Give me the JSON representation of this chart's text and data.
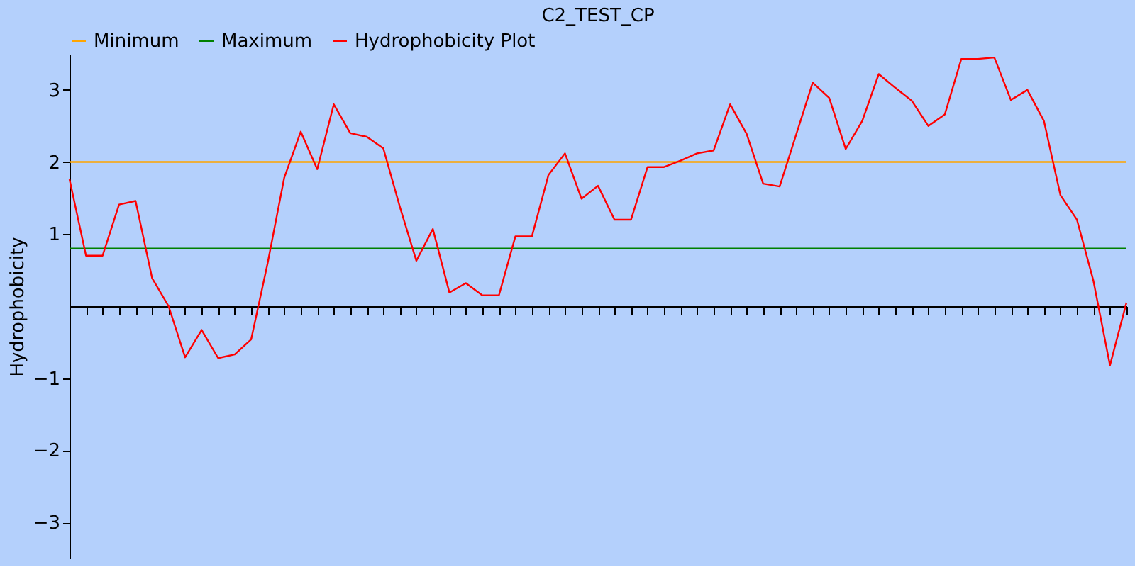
{
  "chart_data": {
    "type": "line",
    "title": "C2_TEST_CP",
    "ylabel": "Hydrophobicity",
    "categories": [
      null,
      null,
      null,
      null,
      null,
      null,
      null,
      null,
      null,
      null,
      null,
      null,
      null,
      null,
      null,
      null,
      null,
      null,
      null,
      null,
      null,
      null,
      null,
      null,
      null,
      null,
      null,
      null,
      null,
      null,
      null,
      null,
      null,
      null,
      null,
      null,
      null,
      null,
      null,
      null,
      null,
      null,
      null,
      null,
      null,
      null,
      null,
      null,
      null,
      null,
      null,
      null,
      null,
      null,
      null,
      null,
      null,
      null,
      null,
      null,
      null,
      null,
      null,
      null,
      null
    ],
    "series": [
      {
        "name": "Minimum",
        "color": "#ffa500",
        "values": [
          2,
          2,
          2,
          2,
          2,
          2,
          2,
          2,
          2,
          2,
          2,
          2,
          2,
          2,
          2,
          2,
          2,
          2,
          2,
          2,
          2,
          2,
          2,
          2,
          2,
          2,
          2,
          2,
          2,
          2,
          2,
          2,
          2,
          2,
          2,
          2,
          2,
          2,
          2,
          2,
          2,
          2,
          2,
          2,
          2,
          2,
          2,
          2,
          2,
          2,
          2,
          2,
          2,
          2,
          2,
          2,
          2,
          2,
          2,
          2,
          2,
          2,
          2,
          2,
          2
        ]
      },
      {
        "name": "Maximum",
        "color": "#008000",
        "values": [
          0.8,
          0.8,
          0.8,
          0.8,
          0.8,
          0.8,
          0.8,
          0.8,
          0.8,
          0.8,
          0.8,
          0.8,
          0.8,
          0.8,
          0.8,
          0.8,
          0.8,
          0.8,
          0.8,
          0.8,
          0.8,
          0.8,
          0.8,
          0.8,
          0.8,
          0.8,
          0.8,
          0.8,
          0.8,
          0.8,
          0.8,
          0.8,
          0.8,
          0.8,
          0.8,
          0.8,
          0.8,
          0.8,
          0.8,
          0.8,
          0.8,
          0.8,
          0.8,
          0.8,
          0.8,
          0.8,
          0.8,
          0.8,
          0.8,
          0.8,
          0.8,
          0.8,
          0.8,
          0.8,
          0.8,
          0.8,
          0.8,
          0.8,
          0.8,
          0.8,
          0.8,
          0.8,
          0.8,
          0.8,
          0.8
        ]
      },
      {
        "name": "Hydrophobicity Plot",
        "color": "#ff0000",
        "values": [
          1.76,
          0.7,
          0.7,
          1.41,
          1.46,
          0.39,
          0.0,
          -0.71,
          -0.33,
          -0.72,
          -0.67,
          -0.46,
          0.6,
          1.78,
          2.42,
          1.9,
          2.8,
          2.4,
          2.35,
          2.19,
          1.38,
          0.63,
          1.07,
          0.19,
          0.32,
          0.15,
          0.15,
          0.97,
          0.97,
          1.82,
          2.12,
          1.49,
          1.67,
          1.2,
          1.2,
          1.93,
          1.93,
          2.02,
          2.12,
          2.16,
          2.8,
          2.39,
          1.7,
          1.66,
          2.38,
          3.1,
          2.89,
          2.18,
          2.57,
          3.22,
          3.03,
          2.85,
          2.5,
          2.66,
          3.43,
          3.43,
          3.45,
          2.86,
          3.0,
          2.57,
          1.54,
          1.2,
          0.35,
          -0.82,
          0.05
        ]
      }
    ],
    "ylim": [
      -3.5,
      3.5
    ],
    "yticks": [
      -3,
      -2,
      -1,
      1,
      2,
      3
    ],
    "tick_labels": "y",
    "legend": "top",
    "marker": "none",
    "line_style": "solid"
  }
}
